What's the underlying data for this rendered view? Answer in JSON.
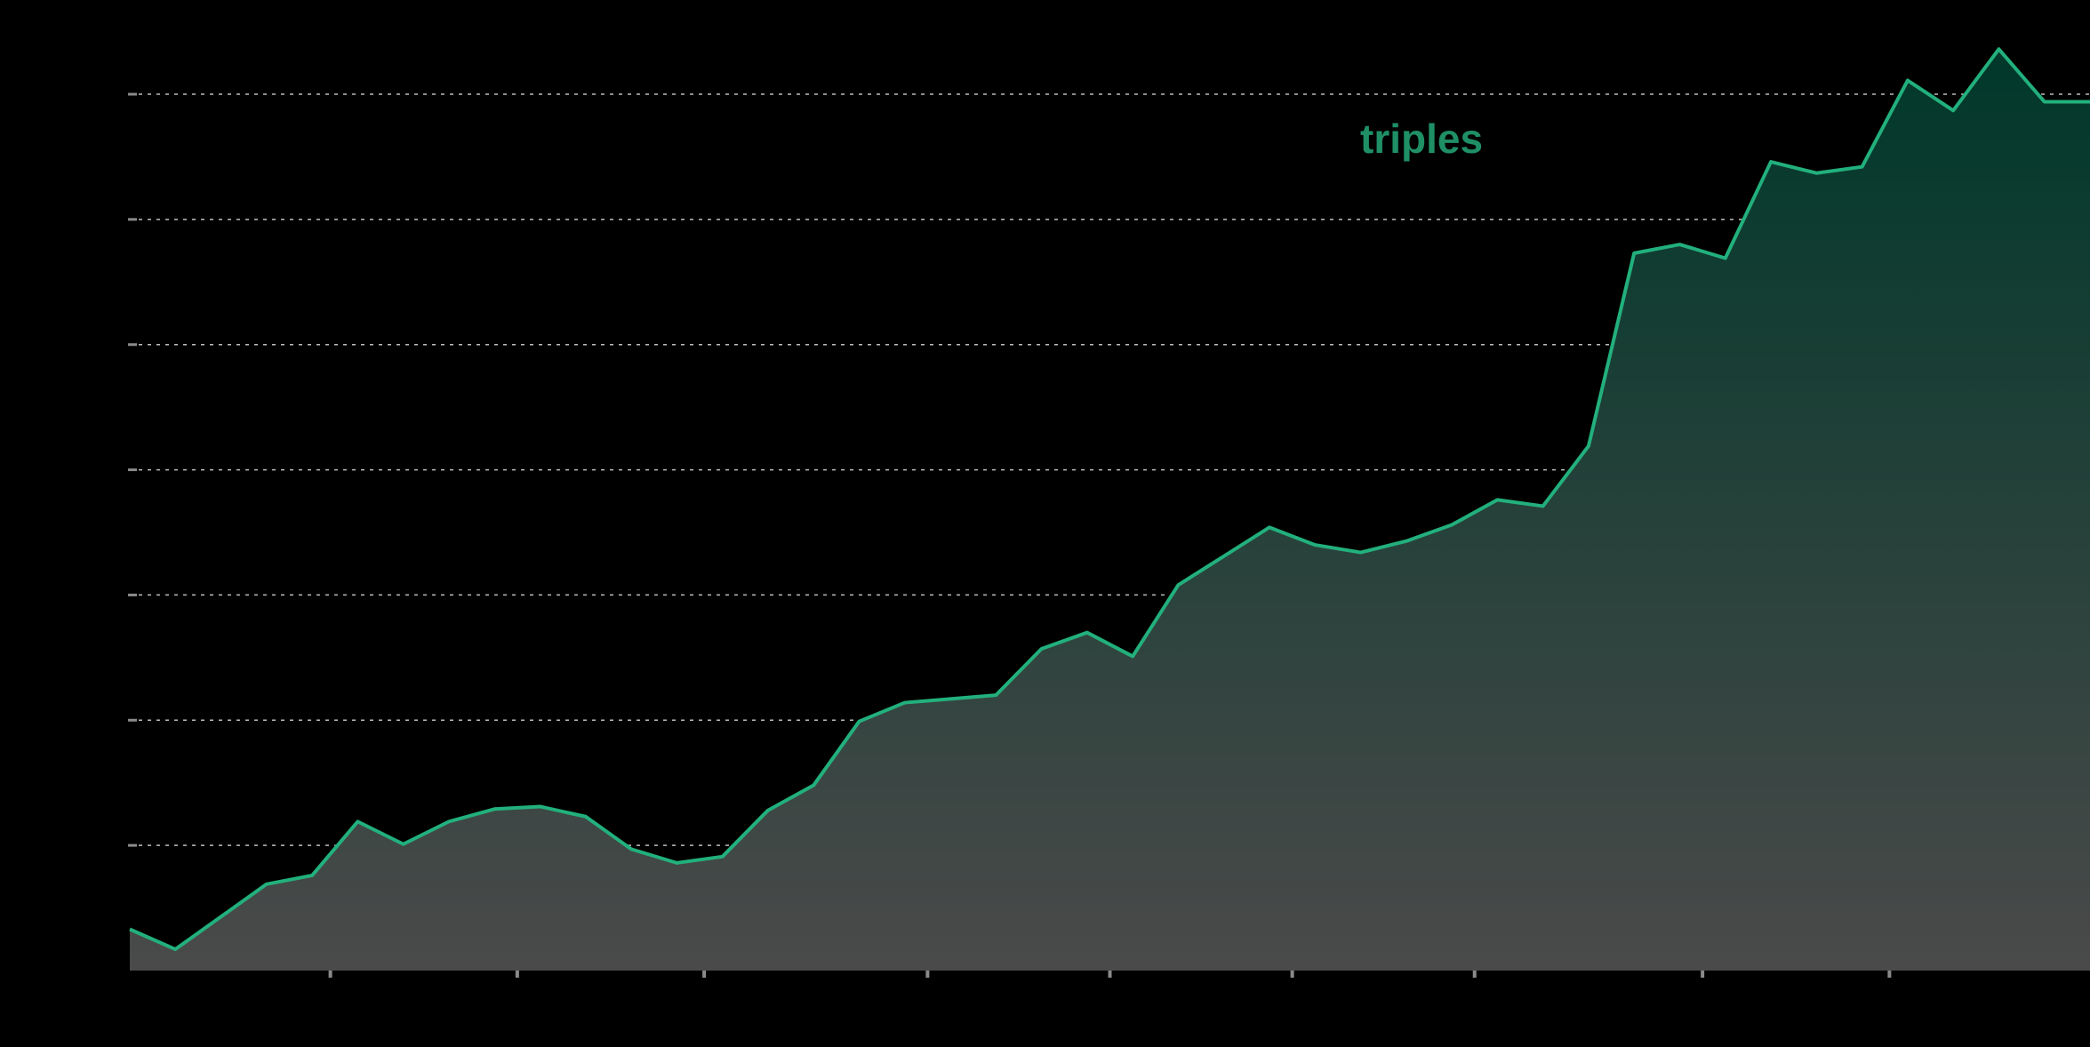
{
  "colors": {
    "background": "#000000",
    "line": "#22b07d",
    "series_label": "#1f8f66",
    "fill_top": "#00382a",
    "fill_bottom": "#4a4a4a",
    "grid": "#bdbdbd",
    "axis": "#8a8a8a",
    "tick": "#8a8a8a"
  },
  "chart_data": {
    "type": "area",
    "title": "",
    "xlabel": "",
    "ylabel": "",
    "grid": true,
    "grid_style": "dotted horizontal",
    "legend": "none",
    "xlim": [
      0,
      43
    ],
    "ylim": [
      0,
      7
    ],
    "y_gridlines": [
      1,
      2,
      3,
      4,
      5,
      6,
      7
    ],
    "x_ticks": [
      4.4,
      8.5,
      12.6,
      17.5,
      21.5,
      25.5,
      29.5,
      34.5,
      38.6
    ],
    "series": [
      {
        "name": "triples",
        "x": [
          0,
          1,
          2,
          3,
          4,
          5,
          6,
          7,
          8,
          9,
          10,
          11,
          12,
          13,
          14,
          15,
          16,
          17,
          18,
          19,
          20,
          21,
          22,
          23,
          24,
          25,
          26,
          27,
          28,
          29,
          30,
          31,
          32,
          33,
          34,
          35,
          36,
          37,
          38,
          39,
          40,
          41,
          42,
          43
        ],
        "values": [
          0.33,
          0.17,
          0.43,
          0.69,
          0.76,
          1.19,
          1.01,
          1.19,
          1.29,
          1.31,
          1.23,
          0.97,
          0.86,
          0.91,
          1.28,
          1.48,
          1.99,
          2.14,
          2.17,
          2.2,
          2.57,
          2.7,
          2.51,
          3.08,
          3.31,
          3.54,
          3.4,
          3.34,
          3.43,
          3.56,
          3.76,
          3.71,
          4.19,
          5.73,
          5.8,
          5.69,
          6.46,
          6.37,
          6.42,
          7.11,
          6.87,
          7.36,
          6.94,
          6.94
        ]
      }
    ]
  },
  "labels": {
    "series_label": "triples"
  }
}
